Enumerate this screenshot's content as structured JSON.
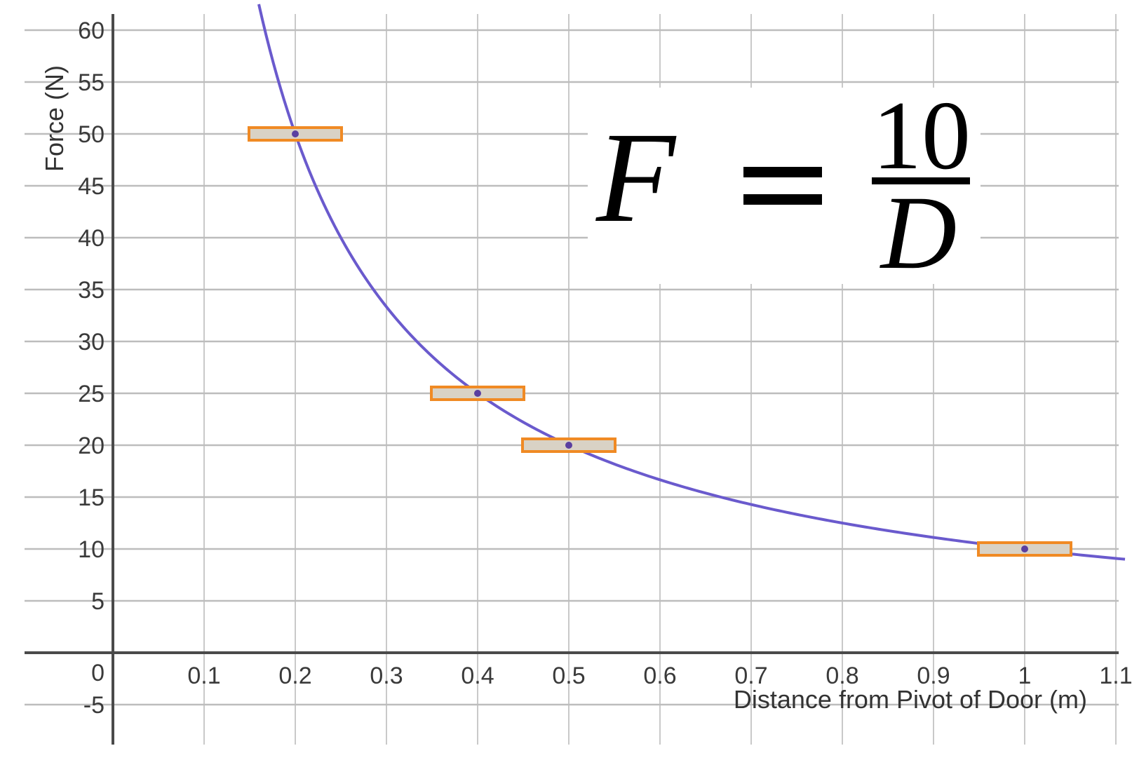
{
  "chart_data": {
    "type": "scatter",
    "title": "",
    "xlabel": "Distance from Pivot of Door (m)",
    "ylabel": "Force (N)",
    "xlim": [
      -0.1,
      1.11
    ],
    "ylim": [
      -9,
      61
    ],
    "x_ticks": [
      {
        "value": 0.1,
        "label": "0.1"
      },
      {
        "value": 0.2,
        "label": "0.2"
      },
      {
        "value": 0.3,
        "label": "0.3"
      },
      {
        "value": 0.4,
        "label": "0.4"
      },
      {
        "value": 0.5,
        "label": "0.5"
      },
      {
        "value": 0.6,
        "label": "0.6"
      },
      {
        "value": 0.7,
        "label": "0.7"
      },
      {
        "value": 0.8,
        "label": "0.8"
      },
      {
        "value": 0.9,
        "label": "0.9"
      },
      {
        "value": 1.0,
        "label": "1"
      },
      {
        "value": 1.1,
        "label": "1.1"
      }
    ],
    "y_ticks": [
      {
        "value": 60,
        "label": "60"
      },
      {
        "value": 55,
        "label": "55"
      },
      {
        "value": 50,
        "label": "50"
      },
      {
        "value": 45,
        "label": "45"
      },
      {
        "value": 40,
        "label": "40"
      },
      {
        "value": 35,
        "label": "35"
      },
      {
        "value": 30,
        "label": "30"
      },
      {
        "value": 25,
        "label": "25"
      },
      {
        "value": 20,
        "label": "20"
      },
      {
        "value": 15,
        "label": "15"
      },
      {
        "value": 10,
        "label": "10"
      },
      {
        "value": 5,
        "label": "5"
      },
      {
        "value": -5,
        "label": "-5"
      }
    ],
    "origin_label": "0",
    "grid": true,
    "points": [
      {
        "x": 0.2,
        "y": 50
      },
      {
        "x": 0.4,
        "y": 25
      },
      {
        "x": 0.5,
        "y": 20
      },
      {
        "x": 1.0,
        "y": 10
      }
    ],
    "curve": {
      "formula_constant": 10,
      "x_min": 0.16,
      "x_max": 1.11
    },
    "equation": {
      "lhs": "F",
      "numerator": "10",
      "denominator": "D"
    },
    "colors": {
      "curve": "#6a5acd",
      "marker_border": "#f08a24",
      "marker_fill": "#d9d2c5"
    }
  }
}
